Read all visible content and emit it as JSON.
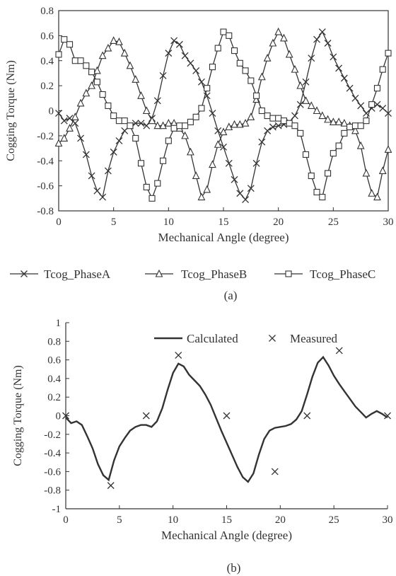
{
  "chart_data": [
    {
      "type": "line",
      "caption": "(a)",
      "xlabel": "Mechanical Angle (degree)",
      "ylabel": "Cogging Torque (Nm)",
      "xlim": [
        0,
        30
      ],
      "ylim": [
        -0.8,
        0.8
      ],
      "xticks": [
        0,
        5,
        10,
        15,
        20,
        25,
        30
      ],
      "yticks": [
        -0.8,
        -0.6,
        -0.4,
        -0.2,
        0,
        0.2,
        0.4,
        0.6,
        0.8
      ],
      "ytick_labels": [
        "-0.8",
        "-0.6",
        "-0.4",
        "-0.2",
        "0",
        "0.2",
        "0.4",
        "0.6",
        "0.8"
      ],
      "grid": false,
      "legend_position": "bottom",
      "series": [
        {
          "name": "Tcog_PhaseA",
          "marker": "x",
          "x": [
            0,
            0.5,
            1,
            1.5,
            2,
            2.5,
            3,
            3.5,
            4,
            4.5,
            5,
            5.5,
            6,
            6.5,
            7,
            7.5,
            8,
            8.5,
            9,
            9.5,
            10,
            10.5,
            11,
            11.5,
            12,
            12.5,
            13,
            13.5,
            14,
            14.5,
            15,
            15.5,
            16,
            16.5,
            17,
            17.5,
            18,
            18.5,
            19,
            19.5,
            20,
            20.5,
            21,
            21.5,
            22,
            22.5,
            23,
            23.5,
            24,
            24.5,
            25,
            25.5,
            26,
            26.5,
            27,
            27.5,
            28,
            28.5,
            29,
            29.5,
            30
          ],
          "y": [
            -0.02,
            -0.08,
            -0.06,
            -0.1,
            -0.22,
            -0.35,
            -0.52,
            -0.64,
            -0.69,
            -0.48,
            -0.33,
            -0.24,
            -0.16,
            -0.12,
            -0.1,
            -0.1,
            -0.12,
            -0.06,
            0.08,
            0.28,
            0.46,
            0.56,
            0.53,
            0.44,
            0.38,
            0.32,
            0.23,
            0.12,
            -0.02,
            -0.16,
            -0.29,
            -0.42,
            -0.55,
            -0.66,
            -0.71,
            -0.62,
            -0.42,
            -0.25,
            -0.16,
            -0.13,
            -0.12,
            -0.11,
            -0.09,
            -0.04,
            0.05,
            0.23,
            0.42,
            0.57,
            0.63,
            0.54,
            0.43,
            0.34,
            0.26,
            0.18,
            0.1,
            0.04,
            -0.02,
            0.02,
            0.05,
            0.02,
            -0.02
          ]
        },
        {
          "name": "Tcog_PhaseB",
          "marker": "triangle",
          "x": [
            0,
            0.5,
            1,
            1.5,
            2,
            2.5,
            3,
            3.5,
            4,
            4.5,
            5,
            5.5,
            6,
            6.5,
            7,
            7.5,
            8,
            8.5,
            9,
            9.5,
            10,
            10.5,
            11,
            11.5,
            12,
            12.5,
            13,
            13.5,
            14,
            14.5,
            15,
            15.5,
            16,
            16.5,
            17,
            17.5,
            18,
            18.5,
            19,
            19.5,
            20,
            20.5,
            21,
            21.5,
            22,
            22.5,
            23,
            23.5,
            24,
            24.5,
            25,
            25.5,
            26,
            26.5,
            27,
            27.5,
            28,
            28.5,
            29,
            29.5,
            30
          ],
          "y": [
            -0.26,
            -0.22,
            -0.14,
            -0.05,
            0.06,
            0.14,
            0.2,
            0.32,
            0.44,
            0.5,
            0.56,
            0.55,
            0.46,
            0.36,
            0.25,
            0.12,
            0.0,
            -0.08,
            -0.12,
            -0.12,
            -0.1,
            -0.1,
            -0.14,
            -0.2,
            -0.33,
            -0.52,
            -0.69,
            -0.63,
            -0.43,
            -0.27,
            -0.17,
            -0.13,
            -0.11,
            -0.11,
            -0.1,
            -0.05,
            0.09,
            0.27,
            0.42,
            0.54,
            0.63,
            0.58,
            0.45,
            0.33,
            0.2,
            0.08,
            0.04,
            0.0,
            -0.04,
            -0.07,
            -0.09,
            -0.09,
            -0.1,
            -0.12,
            -0.16,
            -0.28,
            -0.5,
            -0.66,
            -0.69,
            -0.48,
            -0.31
          ]
        },
        {
          "name": "Tcog_PhaseC",
          "marker": "square",
          "x": [
            0,
            0.5,
            1,
            1.5,
            2,
            2.5,
            3,
            3.5,
            4,
            4.5,
            5,
            5.5,
            6,
            6.5,
            7,
            7.5,
            8,
            8.5,
            9,
            9.5,
            10,
            10.5,
            11,
            11.5,
            12,
            12.5,
            13,
            13.5,
            14,
            14.5,
            15,
            15.5,
            16,
            16.5,
            17,
            17.5,
            18,
            18.5,
            19,
            19.5,
            20,
            20.5,
            21,
            21.5,
            22,
            22.5,
            23,
            23.5,
            24,
            24.5,
            25,
            25.5,
            26,
            26.5,
            27,
            27.5,
            28,
            28.5,
            29,
            29.5,
            30
          ],
          "y": [
            0.45,
            0.57,
            0.53,
            0.4,
            0.4,
            0.36,
            0.31,
            0.23,
            0.13,
            0.04,
            -0.04,
            -0.08,
            -0.08,
            -0.12,
            -0.22,
            -0.42,
            -0.61,
            -0.7,
            -0.58,
            -0.4,
            -0.24,
            -0.14,
            -0.12,
            -0.12,
            -0.09,
            -0.05,
            0.02,
            0.18,
            0.35,
            0.5,
            0.63,
            0.6,
            0.48,
            0.38,
            0.32,
            0.24,
            0.12,
            0.0,
            -0.04,
            -0.06,
            -0.06,
            -0.08,
            -0.1,
            -0.12,
            -0.18,
            -0.35,
            -0.52,
            -0.65,
            -0.69,
            -0.5,
            -0.34,
            -0.28,
            -0.18,
            -0.13,
            -0.12,
            -0.12,
            -0.08,
            0.05,
            0.18,
            0.33,
            0.46
          ]
        }
      ]
    },
    {
      "type": "line",
      "caption": "(b)",
      "xlabel": "Mechanical Angle (degree)",
      "ylabel": "Cogging Torque (Nm)",
      "xlim": [
        0,
        30
      ],
      "ylim": [
        -1,
        1
      ],
      "xticks": [
        0,
        5,
        10,
        15,
        20,
        25,
        30
      ],
      "yticks": [
        -1,
        -0.8,
        -0.6,
        -0.4,
        -0.2,
        0,
        0.2,
        0.4,
        0.6,
        0.8,
        1
      ],
      "ytick_labels": [
        "-1",
        "-0.8",
        "-0.6",
        "-0.4",
        "-0.2",
        "0",
        "0.2",
        "0.4",
        "0.6",
        "0.8",
        "1"
      ],
      "grid": false,
      "legend_position": "top",
      "series": [
        {
          "name": "Calculated",
          "marker": "none",
          "x": [
            0,
            0.5,
            1,
            1.5,
            2,
            2.5,
            3,
            3.5,
            4,
            4.5,
            5,
            5.5,
            6,
            6.5,
            7,
            7.5,
            8,
            8.5,
            9,
            9.5,
            10,
            10.5,
            11,
            11.5,
            12,
            12.5,
            13,
            13.5,
            14,
            14.5,
            15,
            15.5,
            16,
            16.5,
            17,
            17.5,
            18,
            18.5,
            19,
            19.5,
            20,
            20.5,
            21,
            21.5,
            22,
            22.5,
            23,
            23.5,
            24,
            24.5,
            25,
            25.5,
            26,
            26.5,
            27,
            27.5,
            28,
            28.5,
            29,
            29.5,
            30
          ],
          "y": [
            -0.02,
            -0.08,
            -0.06,
            -0.1,
            -0.22,
            -0.35,
            -0.52,
            -0.64,
            -0.69,
            -0.48,
            -0.33,
            -0.24,
            -0.16,
            -0.12,
            -0.1,
            -0.1,
            -0.12,
            -0.06,
            0.08,
            0.28,
            0.46,
            0.56,
            0.53,
            0.44,
            0.38,
            0.32,
            0.23,
            0.12,
            -0.02,
            -0.16,
            -0.29,
            -0.42,
            -0.55,
            -0.66,
            -0.71,
            -0.62,
            -0.42,
            -0.25,
            -0.16,
            -0.13,
            -0.12,
            -0.11,
            -0.09,
            -0.04,
            0.05,
            0.23,
            0.42,
            0.57,
            0.63,
            0.54,
            0.43,
            0.34,
            0.26,
            0.18,
            0.1,
            0.04,
            -0.02,
            0.02,
            0.05,
            0.02,
            -0.02
          ]
        },
        {
          "name": "Measured",
          "marker": "x",
          "x": [
            0,
            4.2,
            7.5,
            10.5,
            15,
            19.5,
            22.5,
            25.5,
            30
          ],
          "y": [
            0,
            -0.75,
            0,
            0.65,
            0,
            -0.6,
            0,
            0.7,
            0
          ]
        }
      ]
    }
  ]
}
